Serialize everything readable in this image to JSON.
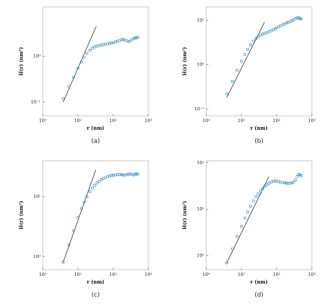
{
  "figure": {
    "panel_labels": [
      "(a)",
      "(b)",
      "(c)",
      "(d)"
    ]
  },
  "chart_data": [
    {
      "type": "scatter",
      "panel": "(a)",
      "xlabel": "r (nm)",
      "ylabel": "H(r) (nm²)",
      "xscale": "log",
      "yscale": "log",
      "xlim": [
        1,
        1000
      ],
      "ylim": [
        0.05,
        12
      ],
      "xticks": [
        {
          "v": 1,
          "label": "10⁰"
        },
        {
          "v": 10,
          "label": "10¹"
        },
        {
          "v": 100,
          "label": "10²"
        },
        {
          "v": 1000,
          "label": "10³"
        }
      ],
      "yticks": [
        {
          "v": 0.1,
          "label": "10⁻¹"
        },
        {
          "v": 1,
          "label": "10⁰"
        }
      ],
      "marker_color": "#2e86c1",
      "fit_line": {
        "x": [
          3.8,
          33
        ],
        "y": [
          0.1,
          4.5
        ]
      },
      "series": [
        {
          "x": [
            3.8,
            5.5,
            7.5,
            10,
            12.5,
            15,
            18,
            22,
            26,
            30,
            35,
            40,
            46,
            52,
            60,
            70,
            80,
            90,
            100,
            115,
            130,
            150,
            170,
            190,
            210,
            240,
            270,
            300,
            340,
            380,
            420,
            460,
            500
          ],
          "y": [
            0.12,
            0.22,
            0.35,
            0.55,
            0.75,
            0.95,
            1.15,
            1.35,
            1.5,
            1.6,
            1.68,
            1.72,
            1.76,
            1.8,
            1.84,
            1.88,
            1.92,
            1.95,
            2.0,
            2.05,
            2.12,
            2.2,
            2.3,
            2.35,
            2.3,
            2.2,
            2.1,
            2.15,
            2.3,
            2.45,
            2.5,
            2.55,
            2.6
          ]
        }
      ]
    },
    {
      "type": "scatter",
      "panel": "(b)",
      "xlabel": "r (nm)",
      "ylabel": "H(r) (nm²)",
      "xscale": "log",
      "yscale": "log",
      "xlim": [
        1,
        1000
      ],
      "ylim": [
        0.07,
        20
      ],
      "xticks": [
        {
          "v": 1,
          "label": "10⁰"
        },
        {
          "v": 10,
          "label": "10¹"
        },
        {
          "v": 100,
          "label": "10²"
        },
        {
          "v": 1000,
          "label": "10³"
        }
      ],
      "yticks": [
        {
          "v": 0.1,
          "label": "10⁻¹"
        },
        {
          "v": 1,
          "label": "10⁰"
        },
        {
          "v": 10,
          "label": "10¹"
        }
      ],
      "marker_color": "#2e86c1",
      "fit_line": {
        "x": [
          3.8,
          45
        ],
        "y": [
          0.18,
          9.0
        ]
      },
      "series": [
        {
          "x": [
            3.8,
            5.5,
            7.5,
            10,
            12.5,
            15,
            18,
            22,
            26,
            30,
            35,
            40,
            46,
            52,
            60,
            70,
            80,
            90,
            100,
            115,
            130,
            150,
            170,
            190,
            210,
            240,
            270,
            300,
            340,
            380,
            420,
            460,
            500
          ],
          "y": [
            0.22,
            0.42,
            0.75,
            1.2,
            1.7,
            2.2,
            2.8,
            3.4,
            3.9,
            4.3,
            4.6,
            4.85,
            5.05,
            5.25,
            5.5,
            5.8,
            6.1,
            6.4,
            6.7,
            7.1,
            7.5,
            7.9,
            8.3,
            8.7,
            9.0,
            9.3,
            9.7,
            10.2,
            10.8,
            11.4,
            11.3,
            10.9,
            10.7
          ]
        }
      ]
    },
    {
      "type": "scatter",
      "panel": "(c)",
      "xlabel": "r (nm)",
      "ylabel": "H(r) (nm²)",
      "xscale": "log",
      "yscale": "log",
      "xlim": [
        1,
        1000
      ],
      "ylim": [
        0.6,
        40
      ],
      "xticks": [
        {
          "v": 1,
          "label": "10⁰"
        },
        {
          "v": 10,
          "label": "10¹"
        },
        {
          "v": 100,
          "label": "10²"
        },
        {
          "v": 1000,
          "label": "10³"
        }
      ],
      "yticks": [
        {
          "v": 1,
          "label": "10⁰"
        },
        {
          "v": 10,
          "label": "10¹"
        }
      ],
      "marker_color": "#2e86c1",
      "fit_line": {
        "x": [
          3.8,
          32
        ],
        "y": [
          0.8,
          28
        ]
      },
      "series": [
        {
          "x": [
            3.8,
            5.5,
            7.5,
            10,
            12.5,
            15,
            18,
            22,
            26,
            30,
            35,
            40,
            46,
            52,
            60,
            70,
            80,
            90,
            100,
            115,
            130,
            150,
            170,
            190,
            210,
            240,
            270,
            300,
            340,
            380,
            420,
            460,
            500
          ],
          "y": [
            0.8,
            1.55,
            2.7,
            4.5,
            6.3,
            8.0,
            10.0,
            12.2,
            14.0,
            15.5,
            17.0,
            18.2,
            19.3,
            20.2,
            21.0,
            21.7,
            22.2,
            22.6,
            23.0,
            23.2,
            23.3,
            23.4,
            23.4,
            23.2,
            23.0,
            23.3,
            23.8,
            24.0,
            23.6,
            23.2,
            23.8,
            24.3,
            23.7
          ]
        }
      ]
    },
    {
      "type": "scatter",
      "panel": "(d)",
      "xlabel": "r (nm)",
      "ylabel": "H(r) (nm²)",
      "xscale": "log",
      "yscale": "log",
      "xlim": [
        1,
        1000
      ],
      "ylim": [
        0.5,
        110
      ],
      "xticks": [
        {
          "v": 1,
          "label": "10⁰"
        },
        {
          "v": 10,
          "label": "10¹"
        },
        {
          "v": 100,
          "label": "10²"
        },
        {
          "v": 1000,
          "label": "10³"
        }
      ],
      "yticks": [
        {
          "v": 1,
          "label": "10⁰"
        },
        {
          "v": 10,
          "label": "10¹"
        },
        {
          "v": 100,
          "label": "10²"
        }
      ],
      "marker_color": "#2e86c1",
      "fit_line": {
        "x": [
          3.8,
          60
        ],
        "y": [
          0.7,
          50
        ]
      },
      "series": [
        {
          "x": [
            3.8,
            5.5,
            7.5,
            10,
            12.5,
            15,
            18,
            22,
            26,
            30,
            35,
            40,
            46,
            52,
            60,
            70,
            80,
            90,
            100,
            115,
            130,
            150,
            170,
            190,
            210,
            240,
            270,
            300,
            340,
            380,
            420,
            460,
            500
          ],
          "y": [
            0.7,
            1.4,
            2.6,
            4.3,
            6.5,
            8.7,
            11.5,
            15.0,
            18.5,
            21.5,
            25.0,
            28.0,
            31.0,
            33.5,
            36.0,
            38.5,
            40.0,
            40.5,
            40.0,
            39.0,
            38.0,
            37.5,
            37.0,
            36.5,
            36.0,
            36.0,
            37.0,
            38.5,
            42.0,
            50.0,
            56.0,
            55.0,
            52.0
          ]
        }
      ]
    }
  ]
}
